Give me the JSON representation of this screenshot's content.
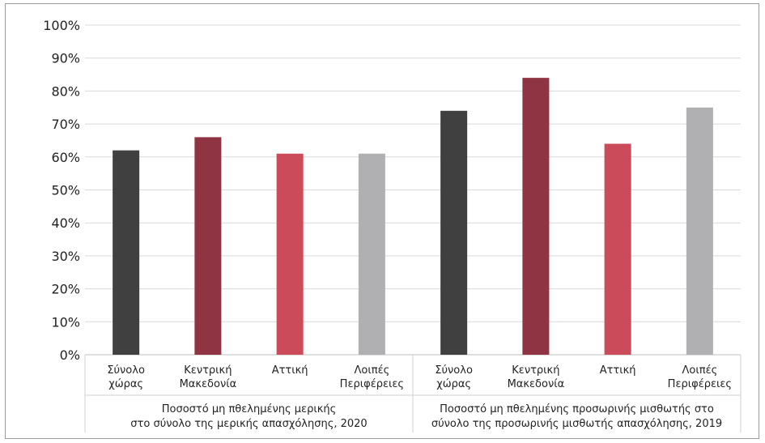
{
  "chart_data": {
    "type": "bar",
    "ylim": [
      0,
      100
    ],
    "y_ticks": [
      "0%",
      "10%",
      "20%",
      "30%",
      "40%",
      "50%",
      "60%",
      "70%",
      "80%",
      "90%",
      "100%"
    ],
    "grid": true,
    "legend": "none",
    "colors": [
      "#404040",
      "#8f3442",
      "#cb4b5b",
      "#b0b0b3"
    ],
    "groups": [
      {
        "label_lines": [
          "Ποσοστό μη πθελημένης μερικής",
          "στο σύνολο της μερικής απασχόλησης, 2020"
        ],
        "categories": [
          {
            "lines": [
              "Σύνολο",
              "χώρας"
            ]
          },
          {
            "lines": [
              "Κεντρική",
              "Μακεδονία"
            ]
          },
          {
            "lines": [
              "Αττική"
            ]
          },
          {
            "lines": [
              "Λοιπές",
              "Περιφέρειες"
            ]
          }
        ],
        "values": [
          62,
          66,
          61,
          61
        ]
      },
      {
        "label_lines": [
          "Ποσοστό μη πθελημένης προσωρινής μισθωτής στο",
          "σύνολο της προσωρινής μισθωτής απασχόλησης, 2019"
        ],
        "categories": [
          {
            "lines": [
              "Σύνολο",
              "χώρας"
            ]
          },
          {
            "lines": [
              "Κεντρική",
              "Μακεδονία"
            ]
          },
          {
            "lines": [
              "Αττική"
            ]
          },
          {
            "lines": [
              "Λοιπές",
              "Περιφέρειες"
            ]
          }
        ],
        "values": [
          74,
          84,
          64,
          75
        ]
      }
    ]
  }
}
